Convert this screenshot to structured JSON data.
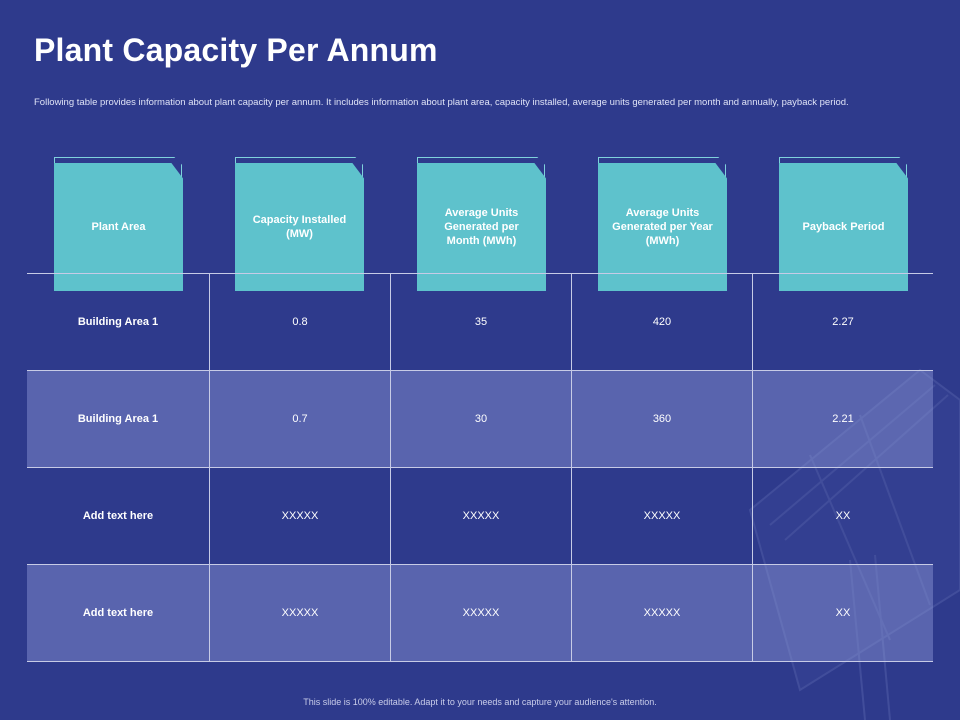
{
  "title": "Plant Capacity Per Annum",
  "subtitle": "Following table provides information about plant capacity per annum. It includes information about plant area, capacity installed, average units generated per month and annually, payback period.",
  "headers": [
    "Plant Area",
    "Capacity Installed (MW)",
    "Average Units Generated per Month (MWh)",
    "Average Units Generated per Year (MWh)",
    "Payback Period"
  ],
  "rows": [
    [
      "Building Area 1",
      "0.8",
      "35",
      "420",
      "2.27"
    ],
    [
      "Building Area 1",
      "0.7",
      "30",
      "360",
      "2.21"
    ],
    [
      "Add text here",
      "XXXXX",
      "XXXXX",
      "XXXXX",
      "XX"
    ],
    [
      "Add text here",
      "XXXXX",
      "XXXXX",
      "XXXXX",
      "XX"
    ]
  ],
  "footer": "This slide is 100% editable. Adapt it to your needs and capture your audience's attention.",
  "colors": {
    "background": "#2e3a8c",
    "header_card": "#5ec2cc",
    "shaded_row": "#5a66a8"
  }
}
